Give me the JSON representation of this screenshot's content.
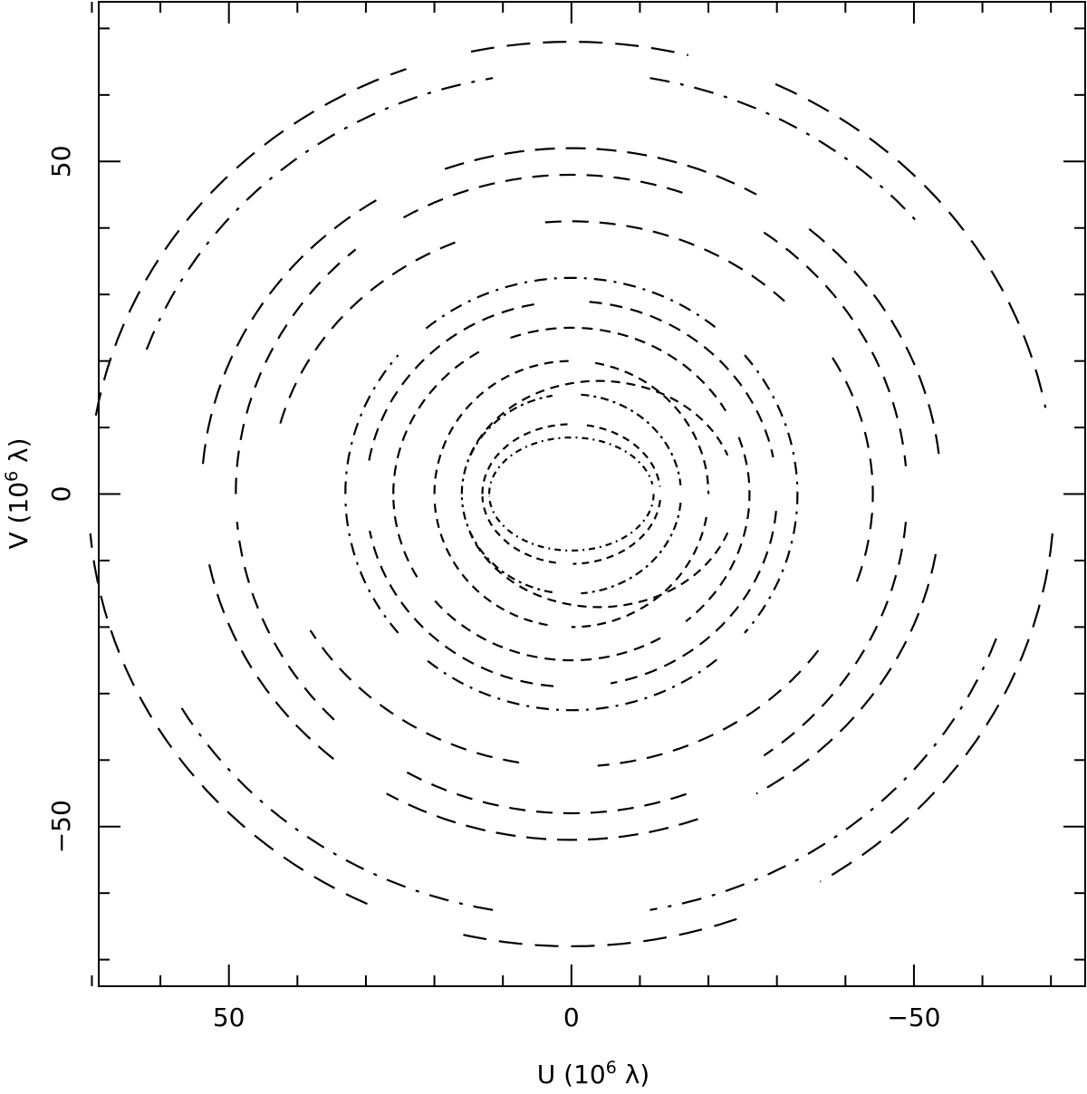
{
  "chart_data": {
    "type": "scatter",
    "description_kind": "uv-coverage",
    "xlabel": "U (10^6 λ)",
    "ylabel": "V (10^6 λ)",
    "x_axis_reversed": true,
    "xlim": [
      69,
      -75
    ],
    "ylim": [
      -74,
      74
    ],
    "x_major_ticks": [
      50,
      0,
      -50
    ],
    "y_major_ticks": [
      50,
      0,
      -50
    ],
    "x_tick_labels": [
      "50",
      "0",
      "−50"
    ],
    "y_tick_labels": [
      "50",
      "0",
      "−50"
    ],
    "x_minor_step": 10,
    "y_minor_step": 10,
    "grid": false,
    "legend": "none",
    "color": "#000000",
    "series": [
      {
        "radius_u": 70.5,
        "radius_v": 68.0,
        "dash": "26,14",
        "arc_deg": [
          [
            10,
            70
          ],
          [
            78,
            105
          ],
          [
            115,
            170
          ],
          [
            185,
            240
          ],
          [
            250,
            285
          ],
          [
            295,
            355
          ]
        ]
      },
      {
        "radius_u": 66.0,
        "radius_v": 63.5,
        "dash": "22,12,4,12",
        "arc_deg": [
          [
            20,
            80
          ],
          [
            100,
            140
          ],
          [
            200,
            260
          ],
          [
            280,
            330
          ]
        ]
      },
      {
        "radius_u": 54.0,
        "radius_v": 52.0,
        "dash": "22,12",
        "arc_deg": [
          [
            5,
            60
          ],
          [
            70,
            120
          ],
          [
            130,
            175
          ],
          [
            190,
            240
          ],
          [
            250,
            300
          ],
          [
            310,
            350
          ]
        ]
      },
      {
        "radius_u": 49.0,
        "radius_v": 48.0,
        "dash": "18,12",
        "arc_deg": [
          [
            0,
            50
          ],
          [
            60,
            110
          ],
          [
            125,
            175
          ],
          [
            185,
            235
          ],
          [
            250,
            300
          ],
          [
            315,
            355
          ]
        ]
      },
      {
        "radius_u": 44.0,
        "radius_v": 41.0,
        "dash": "18,12",
        "arc_deg": [
          [
            15,
            70
          ],
          [
            85,
            135
          ],
          [
            150,
            200
          ],
          [
            215,
            265
          ],
          [
            280,
            330
          ]
        ]
      },
      {
        "radius_u": 33.0,
        "radius_v": 32.5,
        "dash": "14,8,3,8",
        "arc_deg": [
          [
            0,
            40
          ],
          [
            50,
            130
          ],
          [
            140,
            220
          ],
          [
            230,
            310
          ],
          [
            320,
            358
          ]
        ]
      },
      {
        "radius_u": 30.0,
        "radius_v": 29.0,
        "dash": "14,9",
        "arc_deg": [
          [
            10,
            80
          ],
          [
            95,
            170
          ],
          [
            185,
            260
          ],
          [
            275,
            350
          ]
        ]
      },
      {
        "radius_u": 26.0,
        "radius_v": 25.0,
        "dash": "12,8",
        "arc_deg": [
          [
            0,
            60
          ],
          [
            70,
            150
          ],
          [
            160,
            230
          ],
          [
            240,
            320
          ],
          [
            330,
            358
          ]
        ]
      },
      {
        "radius_u": 20.0,
        "radius_v": 20.0,
        "dash": "10,7",
        "arc_deg": [
          [
            0,
            90
          ],
          [
            100,
            180
          ],
          [
            190,
            270
          ],
          [
            280,
            358
          ]
        ]
      },
      {
        "radius_u": 16.0,
        "radius_v": 15.0,
        "dash": "9,5,3,5",
        "arc_deg": [
          [
            0,
            80
          ],
          [
            95,
            175
          ],
          [
            185,
            265
          ],
          [
            280,
            358
          ]
        ]
      },
      {
        "radius_u": 13.0,
        "radius_v": 10.5,
        "dash": "8,6",
        "arc_deg": [
          [
            0,
            90
          ],
          [
            100,
            175
          ],
          [
            185,
            270
          ],
          [
            280,
            358
          ]
        ]
      },
      {
        "radius_u": 12.0,
        "radius_v": 8.5,
        "dash": "7,5,2,5",
        "arc_deg": [
          [
            0,
            170
          ],
          [
            180,
            358
          ]
        ]
      },
      {
        "radius_u": 20.0,
        "radius_v": 17.0,
        "dash": "10,7",
        "arc_deg": [
          [
            20,
            160
          ],
          [
            200,
            340
          ]
        ],
        "center_u": -4,
        "center_v": 0
      }
    ]
  }
}
